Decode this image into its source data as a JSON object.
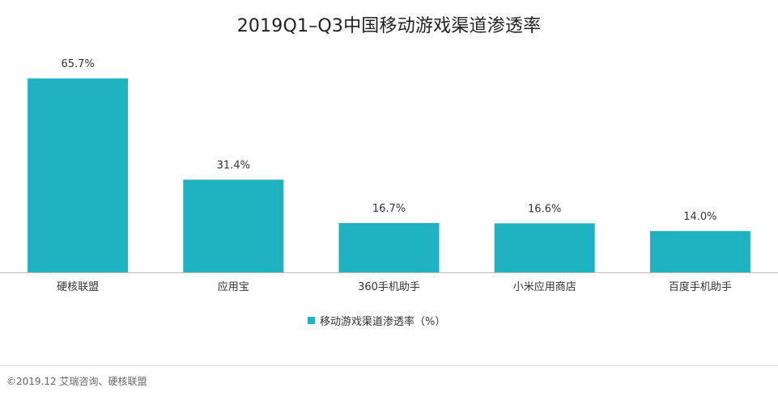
{
  "chart_data": {
    "type": "bar",
    "title": "2019Q1–Q3中国移动游戏渠道渗透率",
    "categories": [
      "硬核联盟",
      "应用宝",
      "360手机助手",
      "小米应用商店",
      "百度手机助手"
    ],
    "series": [
      {
        "name": "移动游戏渠道渗透率（%）",
        "values": [
          65.7,
          31.4,
          16.7,
          16.6,
          14.0
        ]
      }
    ],
    "data_labels": [
      "65.7%",
      "31.4%",
      "16.7%",
      "16.6%",
      "14.0%"
    ],
    "ylim": [
      0,
      66
    ],
    "grid": false,
    "legend_position": "bottom",
    "colors": {
      "bar": "#1fb3c2",
      "axis": "#bfbfbf"
    }
  },
  "source_note": "©2019.12  艾瑞咨询、硬核联盟"
}
